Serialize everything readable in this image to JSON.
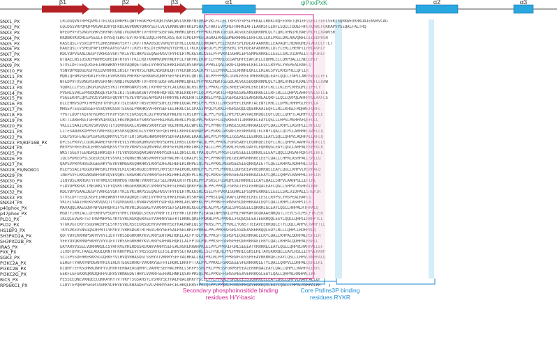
{
  "structure": {
    "strands": [
      "β1",
      "β2",
      "β3"
    ],
    "helices": [
      "α1",
      "α2",
      "α3"
    ],
    "motif": "ψPxxPxK"
  },
  "colors": {
    "strand": "#b52025",
    "helix": "#29a7e1",
    "magenta": "#d0208c",
    "blue": "#1b8ad6"
  },
  "rows": [
    {
      "name": "SNX1_PX",
      "seq": "LRIDGQVNTRPRQVMGTTELVQLDHRPKLQWYFHGKPKFKVQRTSNEQWVLVKRRYNSVRAFVKLFLLELTKPGYFVPSLPEKALLRKKLRQFEVRETQRIEFVQHLLSEHLSEKISQRKWEVKRKDAIENVRVCAG"
    },
    {
      "name": "SNX2_PX",
      "seq": "EQIDGSVRPQMQFMVGAKIDRYQFKDLAGVKWKVQRRYSEFLVLVEKNKLWHFKRLPSHAPLFAKTEVPQRLFRRHNIAFIEARRSFLEHFLSQILTDDEFHPEVQRWLFQKKAPVPSEQALFALTRQ"
    },
    {
      "name": "SNX3_PX",
      "seq": "NFEDPVFVSVNGYGHKVSRFNRTVNDIVGDGKMFTVFRYRFSDSFVALHRMKLQHELPFPPKKLMGKTGEGDLAGVGGSDQQRRRMLQLYLQRLVHNIHCRAEVMDFLLRAWVSR"
    },
    {
      "name": "SNX4_PX",
      "seq": "KKDNKVKVDRLEPSESLFTRYSQTERGTEVTRFVHLSDQLFRRYLKSSTEKTLPDLPPKGLAGRAIRRSSDMEKRRRELERFLRLLLKLPRSLDRLAAVQNFLGLDSDPHSR"
    },
    {
      "name": "SNX5_PX",
      "seq": "KASEQSLTVSVEDPFPLDRKSNRAGYSVYTIRVTTRAVDSDEVVRQYFDFHLLLQRLRLEDHDAPLPEIEKEKFSPLRDEAFAARRRLLEAVAQFLHEWVQHEALAGCDLFTLT"
    },
    {
      "name": "SNX6_PX",
      "seq": "KAGEQSLTVSMEDPAPIERKGAVSGYAVYTIRVSTRSLDTEKMVRQYYDFHLLLTKLKLDNEDIPLPEVEKEKLTPLRDEAFAKRRRLLDLYLERLLHERFLLHHDAVRLF"
    },
    {
      "name": "SNX7_PX",
      "seq": "RDLVDPVSAALDEGPTVKHGSVSRTYKIEVKLHRPSSEQAEHVSVTHYFDLHTMLKESRLKSELPFPVKKIGGRKLEPSSMPERRRELLEELLSRLVIDPALLSTEPIRLF"
    },
    {
      "name": "SNX8_PX",
      "seq": "DTQAELNSIDSDEPNVRRSQHEEWTRYGVTFKLLRDTKRWMVQRRYNDFHILFQRVRLEKRFELPPRRIGEGAPQRFEEARIKLLEQHMLEILQRPDALLLNEQIRLF"
    },
    {
      "name": "SNX9_PX",
      "seq": "STVSIDFTEEQLKGFEIRKEWKNYFVRVAQRQETGREIVYRRYSDFKKLHDALRSSRPAGLPPRSIQALGKAFLQRREELKELLESLLRVPSLYHSPEALRAFLQ"
    },
    {
      "name": "SNX10_PX",
      "seq": "VSNVDPRQDGEKGFKCEDVRRHRLSKSEFYAVRVSLHQKLNSKQRLQRTYVEKDKSSAIKPVFLEEPRKKLLSLRRNHLQKLLLRLAESPVLRHSPHLLQFLLK"
    },
    {
      "name": "SNX11_PX",
      "seq": "MQRIQFNRVSEHGKIFSYRIEVHVKVNLPHFRKFGERKWSVQRRYSEFSRLHVELQRTRLLNLPPFPPKKLIGRLRSSETMERRRQQLEAFLQQLLTNPLLAKHSELLLEFL"
    },
    {
      "name": "SNX12_PX",
      "seq": "NFEDPVFVSVNGYGHKVSRFNRTVNDIVGDGKMFTVFRYRFSDSFVALHRMKLQHELPFPPKKLMGKTGEGDLAGVGGSDQQRRRMLQLYLQRLVHNIHCRAEVMDFLLRAW"
    },
    {
      "name": "SNX13_PX",
      "seq": "VQDRLLLYSELQKGRIKQVESYKITFRHHGNRVSSHLTRYRRFSEFLALQKQLNLRSLMPELPPKKLFGSLKREEVASRLEKELNSFLRLLLKLEPLRHSQPLLEFFLY"
    },
    {
      "name": "SNX14_PX",
      "seq": "PVEHLSVHLEPRVDQNGQEYLKYEIKITSSHGGKSWTVYRRFHQFVDLYKELKKDFPCLQLPPLPGKTLFRQRSGSKEAMEKRRELLLRFLRLLLQHPVLAHHPDVLSFLLE"
    },
    {
      "name": "SNX15_PX",
      "seq": "PSGEEKHYLQPLDYDSYGRKSFQQVHYYEVEVRPSGEAPRSATFHRRYREFAQLHHTLLRRHELPPQLLVGERGLKESEAHSRREALQRFLLQLLQVPQLAHHPHSLAAFLS"
    },
    {
      "name": "SNX16_PX",
      "seq": "DLLEHHVSDPRTHPKEKFTRYHIKVTSLEGKRFTWSVERRYSDFLELHRRLQQALPHSLPPLPEKTLLRRSGPEFLEQRRTALENYLRHLLLDPRLRHHPGLHRFLLA"
    },
    {
      "name": "SNX17_PX",
      "seq": "MHSEPTESSGDSGEFVSVQVRQSSRTSSGGLPRRHKVVFRHYSEFLELHRALCELSPASIPPQLPLKKLFRGRSSQQLQQERRAAIEQFLLRLLKHSLFRQHAEFQRFL"
    },
    {
      "name": "SNX18_PX",
      "seq": "YPGTIDDPTKQTKFKGMKSYFKVPVSRYEEGRSQERLDIYRRYNQFHWLHDTLRSLHPFLNLPPLPGRLLRPEPEGAVVAERRQQLEQFLQELLQHPTLAQHPHLQSFLE"
    },
    {
      "name": "SNX19_PX",
      "seq": "LRTTIAREHSGTGFHRYNIRVQLCFRGVRQEKEYSRRYSEFHSLHSALRERLLPSQLPPLPEKSFFLGQSKEEATIIRRRKELEAYLQSLLLHPSLMSHPAFQEFLCL"
    },
    {
      "name": "SNX20_PX",
      "seq": "VKLEISAAIEREKVSKVQVQTIYIQVRGGRLLRSWAVSKRRYSDFVQLHHRLAELWPEKLPPLPPRKFFGRNSESQVEHRRAALEQYLQALLRHPLLASHPLLLRFLLQ"
    },
    {
      "name": "SNX21_PX",
      "seq": "LLTESANVKKDPPSHTVRFRVQIHSSKSQQKHCGLSYRRYSEFQELHHLLKEHLDASHAPAPLPGKKLGRSAFLEEVRRGRQTELENYLQALLQCPLLARHRELAAFLLQ"
    },
    {
      "name": "SNX22_PX",
      "seq": "LREPSVGFEAEGPGSPEKGQRNYVLYSVTLRTSRGREHWRVRRRYSDFHALHAALERAHLAHLPPLPPKRLLGGSAGLLEERRRLLEAYLSQLLQHPVLAQHPALLAFLQ"
    },
    {
      "name": "SNX23_PX/KIF16B_PX",
      "seq": "DPISIPRVVLCGGKDAAHEFVRYRVEVLSVRGGRQHRVVERRYSDFHLLHRSLLDRFPALQLPPLPPKRLFGRVSAEFLEQRRQELEQYLLRLLQHPVLAAHPALRDFLLS"
    },
    {
      "name": "SNX24_PX",
      "seq": "MEVPSFREEDSDLERRSSAHQKSVYYEVEVRHVSSGQRSHRVLRRFSEFQHLHRELHRLFPALLLPPLPGKRLFGSRLDAEVLEQRRQGLEAYLQGLLAHPALRSHPDLR"
    },
    {
      "name": "SNX25_PX",
      "seq": "WKSTSGEVTEENGRQLHKKSQFFTYLVRVDSRGQARSWVVRRRYSDFEELQHSLLRLYPALQLPPLPPKSFLGRSSEELLQKRRLELEAYLQQLLQHSAFRQHSPLLRFL"
    },
    {
      "name": "SNX26_PX",
      "seq": "IQLSPDREGPSLSGEDGSQYEVSVKLSVQNGEHKSWSVRRRYSDFHALHRTLQRALPLSLPPLPPRKRFGRLGEEAMVRRRRELEEYLQALLLHPRLASHPALLSFLLQ"
    },
    {
      "name": "SNX27_PX",
      "seq": "QAPSVPRYKHVEDGGEEHKYYEVRVHMGGRSQHRHRVIRRYSDFEALHERLKLRHPELQLPSLPPKKLMGGRSEDSLEQRRQALETYLQELLRHPALRDHPHLLSFLL"
    },
    {
      "name": "SNX28_PX/NOXO1",
      "seq": "HLEPSSAEIRGGDGRARSKLFNVQVLRLGSWSRGQEERHRYLRRYSEFHALHQRLKRHLPPLPLPPLPRRRLLQGRSEEAVREQRRQELEAYLQGLLRHPVLRSHPALQ"
    },
    {
      "name": "SNX29_PX",
      "seq": "INEPSVFLRKGAKNAFRVKVQVEVQHSTGRGRHKVSVRRRYSEFDKLHHHLAQRFPLLHLPQLPDKSFGRRSSEEALRERRAALEAYLQRLLQHPVLRAHPHLLEFLLR"
    },
    {
      "name": "SNX30_PX",
      "seq": "IEQVDSLRRHGKTYTVFKMEVSVKNPDGTRKHWTVRRRYSEFSELHRALQRTFPDLRLPPLPSKSLFGSRQPEVLRRRREELEAYLQALLSHPVLAAHPGLLEFLRL"
    },
    {
      "name": "SNX31_PX",
      "seq": "FIDVDPKKHVCTMEGRKLYIFYQVRVTHGGERRRDKVCVRRRYSDFESLHRALQRKFPALHLPPLPPKQLFGRSGTESLEERRQALEAFLQGLLSHPVLRSHPALRAF"
    },
    {
      "name": "SNX32_PX",
      "seq": "RDLVDPVSAALDEGPTVKHGSVSRTYKIEVKLHRPSSEQAEHVSVTHYFDLHTMLKESRLKSELPFPVKKIGGRKLEPSSMPERRRELLEELLSRLVIDPALLSTEPIR"
    },
    {
      "name": "SNX33_PX",
      "seq": "STVSIDFTEEQLKGFEIRKEWKNYFVRVAQRQETGREIVYRRYSDFKKLHDALRSSRPAGLPPRSIQALGKAFLQRREELKELLESLLRVPSLYHSPEALRAFLQ"
    },
    {
      "name": "SNX34_PX",
      "seq": "VKLEISAAIEREKVSKVQVQTIYIQVRGGRLLRSWAVSKRRYSDFVQLHHRLAELWPEKLPPLPPRKFFGRNSESQVEHRRAALEQYLQALLRHPLLASHPLLLR"
    },
    {
      "name": "p40phox_PX",
      "seq": "MAVAQQLRAEGQVFNPVEHRQHVIFYEVKVRLDGGGKEYVVKRRYSEFSALHKRLKEGLPRLALPPLPGKSLSPRSSEELLQRRRLGLEAYLQSLLHHPALRTHPALQ"
    },
    {
      "name": "p47phox_PX",
      "seq": "MGDTFIRHIALLGFEKRFVPSQHYVYMFLVKWQDLSEKVVYRRFTEIYEFHKTLKEMFPIEAGAINPENRIIPHLPAPKWFDGQRAAENRQGTLTEYCSTLMSLPTKISR"
    },
    {
      "name": "PLD1_PX",
      "seq": "IKLQLEVERFTSTTRVPNHPSLYRYSVRLRSRQGRVEEYVVRRRYSEFKTLHNRLQRSFPKRNLPPLPPKRLLFGQSQSLEAIEERRQQLESYLQQLLQHPLLRAHPTLL"
    },
    {
      "name": "PLD2_PX",
      "seq": "VTGKVGTERYTSGGRAEHPSLSYRYSVRLRSEEGRSQEHYVVRRRYSEFKALHARLQLSFPKRSLPPLPPKRLLYGNSTTEEAVEERRQQLETYLQQLLAHPVLRAHPTLL"
    },
    {
      "name": "HS1BP3_PX",
      "seq": "TKVSVKEVSNSGQSDFPRTIYRYEVTVRHSDGRTHTHSVLRRYSEFSALHSELRRLFPRRGLPPLPPKRAFGRLSSDEAVRERRQQLEDYLRLLLQHPLLRDHPALQ"
    },
    {
      "name": "SH3PXD2A_PX",
      "seq": "QDTVDVEKRRNPSKHYVVYIIEVTVRSSDGRRHRYKVLRRYSDFHALHQKLLALFPTDLPQLPPKSFFGGRSPEEQVERRRAELERYLQALLRHPALQDHPALRSFLLR"
    },
    {
      "name": "SH3PXD2B_PX",
      "seq": "VEEVDVQKRRNPSKHYVVYVIEVTVRSSEGRRHRYKVLRRYSDFHALHQKLLALFPTDLPQLPPKSFFGGRSPEEQVERRRAELERYLQALLRHPALQDHPALRSFLL"
    },
    {
      "name": "IRAS_PX",
      "seq": "EKYARVVGSELVDRRAKDLCSYHFRVEVHLRDGSRCKWVVRRRYSEFEALHSRLRRAHPRLELPPLPPKRIFGRLSEEEATVRRRRELEAYLQGLLQHPVLRAHPALLEF"
    },
    {
      "name": "PXK_PX",
      "seq": "ILVDTDPVLTAAIEASQLQKNTVFKRHYMLEVTVRSSGSRTEEFSLIRRYSEFHALHQRLLSLFPQLRLPPLPPKRLLGRSLHETAVEKRRQELEAYLRSLLLHPVLRAHP"
    },
    {
      "name": "SGK3_PX",
      "seq": "SCISPSSDEHREKKKSGIQRKFYVLHVQVRHASDGTSSHYVTVRRRYSEFVALHRALLRAFPKLHLPPLPPKRVFGGSSPEEAVRKRRQELEAYLQSLLLHPVLRNHPALQ"
    },
    {
      "name": "PI3KC2A_PX",
      "seq": "EERGFTYHKKYNPDEKHYRIVIRLRTEGGSRHKFVVKRRYSEFHTLHQKLLRRFPTTALPPLPPKKLFGRKSEEEVFERRRHQLETYLQALLQRPVLLDHPALQSFLLKL"
    },
    {
      "name": "PI3KC2B_PX",
      "seq": "DIQHYTEFRSGHKKDNRFYVIHVKVERNAEDGQHHYLVARRFSEFHALHHKLLSRFPSSHLPKLPPKSSFGKMSPEEAIERRRQALEAYLQALLQHPLLRAHPALLKFL"
    },
    {
      "name": "PI3KC2G_PX",
      "seq": "EEKFLGFSKKKQKKDQHFHVIRVSVRNAEDGTHHYLVVRRFSEFHALHNKLQSRFPRSQLPKLPPKSFFGRSSPEEAVEKRRQGLEAYLQALLQHPALRAHPALLKF"
    },
    {
      "name": "RICS_PX",
      "seq": "PESSEEQNEVRNGEECQKKAYKYTVTVKPTSGSAHSYLVSRRYSEFHALHQALQRKFPSLELPPLPPKRLFGRSLEESSIQRRREELEAYLQGLLQHPVLRAHPALLQF"
    },
    {
      "name": "RPS6KC1_PX",
      "seq": "LLDVTEPQRHPSEGRTAVRKYDFHVEVRLKHAGDEYSVLVRRRYSEFCELHRQLRRSFPKLQLPPLPPKRLFGSNSPEQAVERRRQSLEAYLQALLTHPALRSHPALRK"
    }
  ],
  "annotations": {
    "secondary": "Secondary phosphoinositide binding residues H/Y-basic",
    "core": "Core PtdIns3P binding residues RYKR"
  }
}
